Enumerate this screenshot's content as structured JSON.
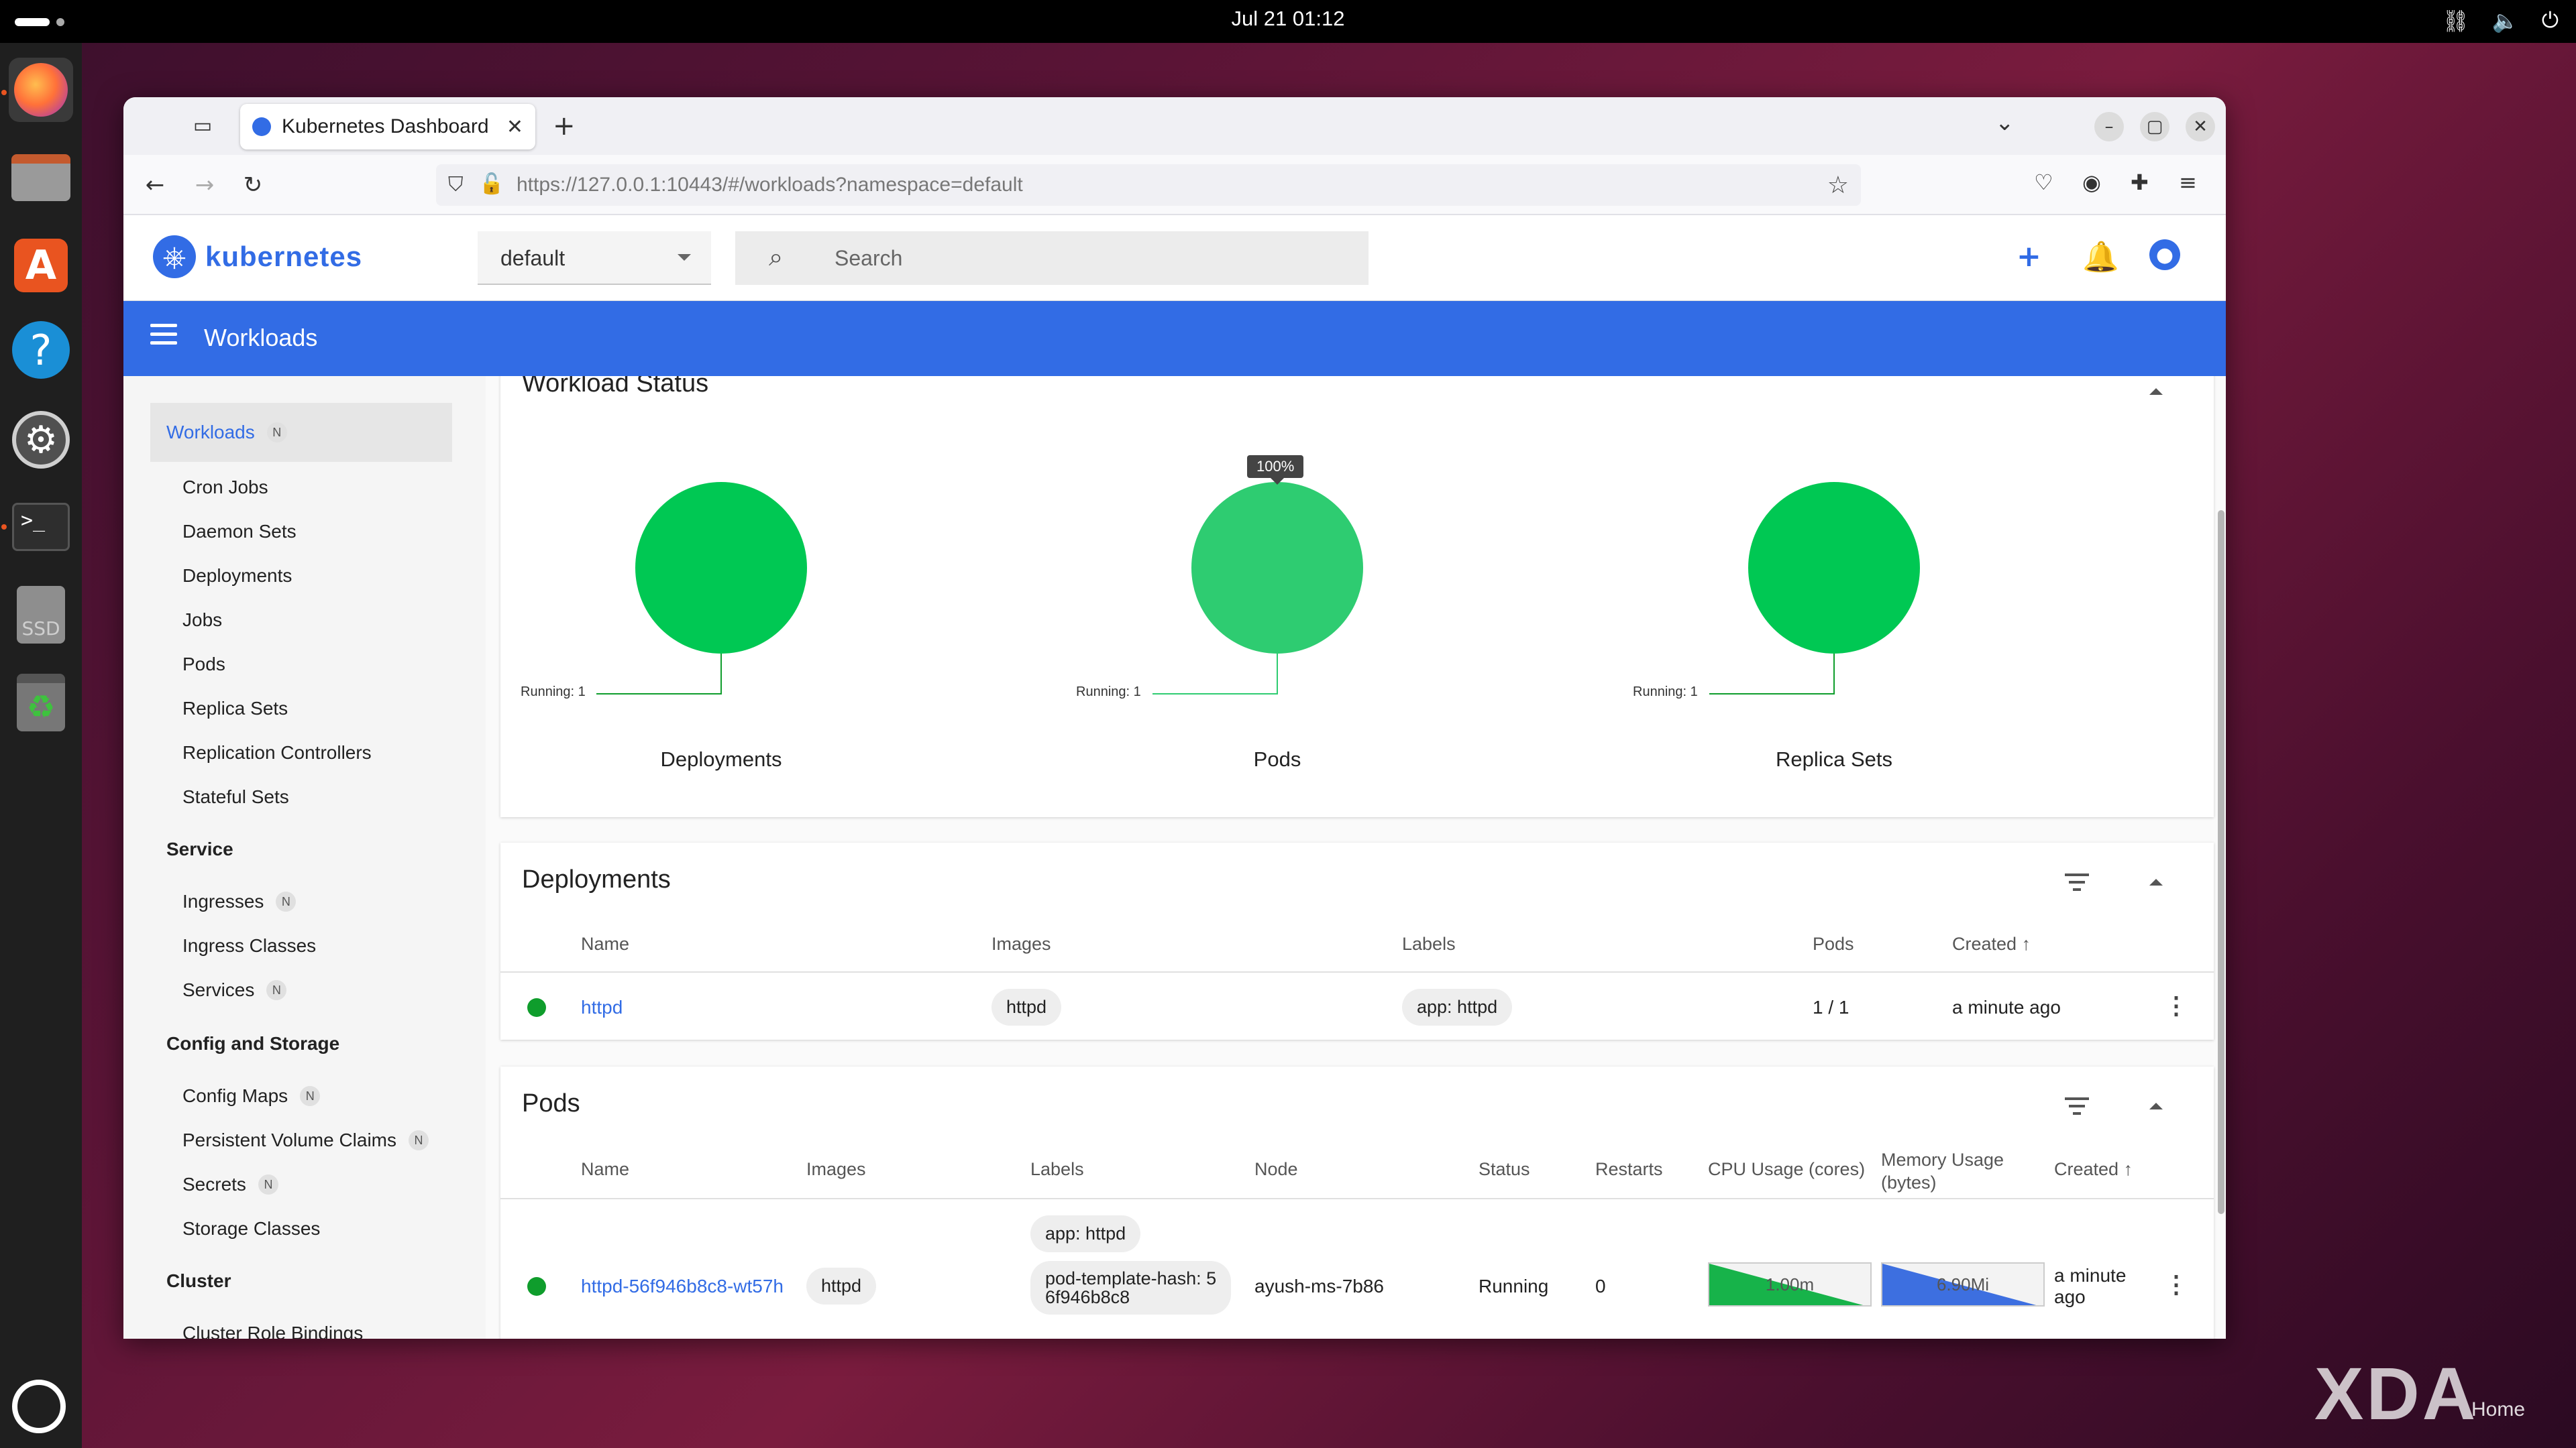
{
  "topbar": {
    "clock": "Jul 21  01:12"
  },
  "browser": {
    "tab_title": "Kubernetes Dashboard",
    "url": "https://127.0.0.1:10443/#/workloads?namespace=default"
  },
  "header": {
    "brand": "kubernetes",
    "namespace": "default",
    "search_placeholder": "Search"
  },
  "toolbar": {
    "title": "Workloads"
  },
  "sidebar": {
    "active": {
      "label": "Workloads",
      "badge": "N"
    },
    "workloads": [
      "Cron Jobs",
      "Daemon Sets",
      "Deployments",
      "Jobs",
      "Pods",
      "Replica Sets",
      "Replication Controllers",
      "Stateful Sets"
    ],
    "service_heading": "Service",
    "service": [
      {
        "label": "Ingresses",
        "badge": "N"
      },
      {
        "label": "Ingress Classes",
        "badge": ""
      },
      {
        "label": "Services",
        "badge": "N"
      }
    ],
    "config_heading": "Config and Storage",
    "config": [
      {
        "label": "Config Maps",
        "badge": "N"
      },
      {
        "label": "Persistent Volume Claims",
        "badge": "N"
      },
      {
        "label": "Secrets",
        "badge": "N"
      },
      {
        "label": "Storage Classes",
        "badge": ""
      }
    ],
    "cluster_heading": "Cluster",
    "cluster": [
      "Cluster Role Bindings"
    ]
  },
  "workload_status": {
    "title": "Workload Status",
    "charts": [
      {
        "name": "Deployments",
        "running_label": "Running: 1",
        "color": "#00c853"
      },
      {
        "name": "Pods",
        "running_label": "Running: 1",
        "color": "#2ecc71",
        "tooltip": "100%"
      },
      {
        "name": "Replica Sets",
        "running_label": "Running: 1",
        "color": "#00c853"
      }
    ]
  },
  "deployments": {
    "title": "Deployments",
    "columns": [
      "Name",
      "Images",
      "Labels",
      "Pods",
      "Created"
    ],
    "rows": [
      {
        "name": "httpd",
        "image": "httpd",
        "label": "app: httpd",
        "pods": "1 / 1",
        "created": "a minute ago"
      }
    ]
  },
  "pods": {
    "title": "Pods",
    "columns": [
      "Name",
      "Images",
      "Labels",
      "Node",
      "Status",
      "Restarts",
      "CPU Usage (cores)",
      "Memory Usage (bytes)",
      "Created"
    ],
    "memory_col_line1": "Memory Usage",
    "memory_col_line2": "(bytes)",
    "rows": [
      {
        "name": "httpd-56f946b8c8-wt57h",
        "image": "httpd",
        "label1": "app: httpd",
        "label2_line1": "pod-template-hash: 5",
        "label2_line2": "6f946b8c8",
        "node": "ayush-ms-7b86",
        "status": "Running",
        "restarts": "0",
        "cpu": "1.00m",
        "memory": "6.90Mi",
        "created_line1": "a minute",
        "created_line2": "ago"
      }
    ]
  },
  "colors": {
    "accent": "#326ce5",
    "running": "#0f9d2c"
  },
  "watermark": {
    "brand": "XDA",
    "home": "Home"
  }
}
